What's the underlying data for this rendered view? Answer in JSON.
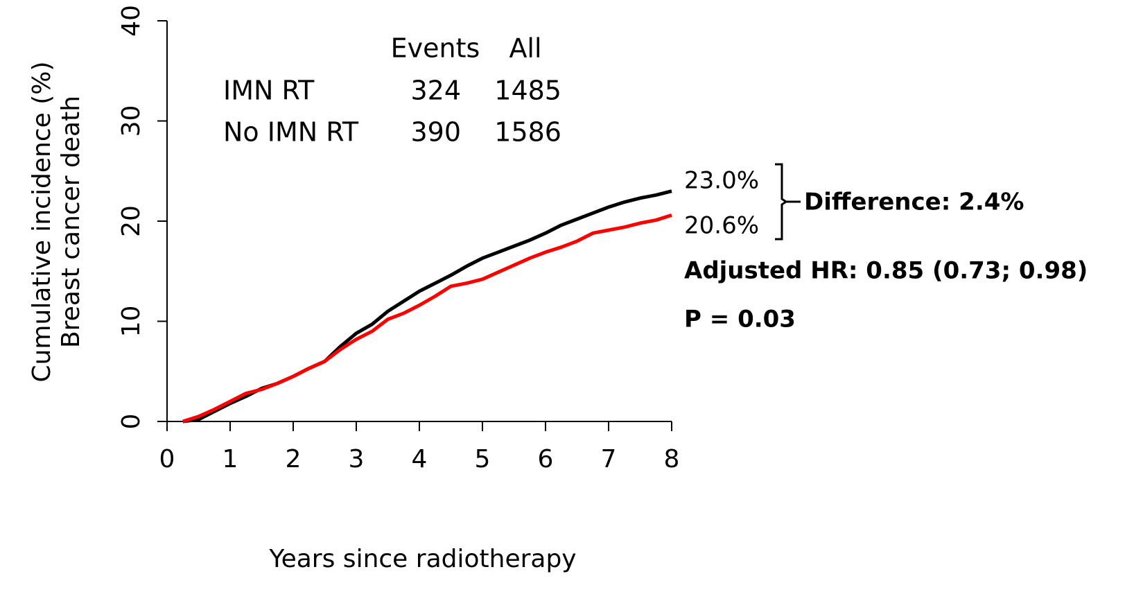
{
  "chart_data": {
    "type": "line",
    "y_label": [
      "Cumulative incidence (%)",
      "Breast cancer death"
    ],
    "x_label": "Years since radiotherapy",
    "xlim": [
      0,
      8
    ],
    "xticks": [
      0,
      1,
      2,
      3,
      4,
      5,
      6,
      7,
      8
    ],
    "ylim": [
      0,
      40
    ],
    "yticks": [
      0,
      10,
      20,
      30,
      40
    ],
    "x": [
      0.25,
      0.5,
      0.75,
      1,
      1.25,
      1.5,
      1.75,
      2,
      2.25,
      2.5,
      2.75,
      3,
      3.25,
      3.5,
      3.75,
      4,
      4.25,
      4.5,
      4.75,
      5,
      5.25,
      5.5,
      5.75,
      6,
      6.25,
      6.5,
      6.75,
      7,
      7.25,
      7.5,
      7.75,
      8
    ],
    "series": [
      {
        "color": "#000000",
        "values": [
          0,
          0.2,
          1.0,
          1.8,
          2.5,
          3.3,
          3.8,
          4.5,
          5.3,
          6.0,
          7.5,
          8.8,
          9.7,
          11.0,
          12.0,
          13.0,
          13.8,
          14.6,
          15.5,
          16.3,
          16.9,
          17.5,
          18.1,
          18.8,
          19.6,
          20.2,
          20.8,
          21.4,
          21.9,
          22.3,
          22.6,
          23.0
        ]
      },
      {
        "color": "#ff0000",
        "values": [
          0,
          0.5,
          1.2,
          2.0,
          2.8,
          3.2,
          3.8,
          4.5,
          5.3,
          6.0,
          7.2,
          8.2,
          9.0,
          10.2,
          10.8,
          11.6,
          12.5,
          13.5,
          13.8,
          14.2,
          14.9,
          15.6,
          16.3,
          16.9,
          17.4,
          18.0,
          18.8,
          19.1,
          19.4,
          19.8,
          20.1,
          20.6
        ]
      }
    ],
    "table": {
      "header": [
        "Events",
        "All"
      ],
      "rows": [
        [
          "IMN RT",
          324,
          1485
        ],
        [
          "No IMN RT",
          390,
          1586
        ]
      ]
    },
    "annotations": [
      "23.0%",
      "20.6%",
      "Difference: 2.4%",
      "Adjusted HR: 0.85 (0.73; 0.98)",
      "P = 0.03"
    ]
  }
}
